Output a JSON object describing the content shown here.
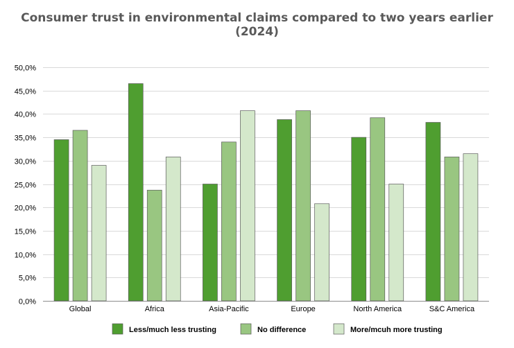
{
  "chart_data": {
    "type": "bar",
    "title": "Consumer trust in environmental claims compared to two years earlier (2024)",
    "xlabel": "",
    "ylabel": "",
    "categories": [
      "Global",
      "Africa",
      "Asia-Pacific",
      "Europe",
      "North America",
      "S&C America"
    ],
    "series": [
      {
        "name": "Less/much less trusting",
        "color": "#4f9e30",
        "values": [
          34.5,
          46.5,
          25.0,
          38.8,
          35.0,
          38.2
        ]
      },
      {
        "name": "No difference",
        "color": "#99c681",
        "values": [
          36.5,
          23.7,
          34.0,
          40.7,
          39.2,
          30.8
        ]
      },
      {
        "name": "More/mcuh more trusting",
        "color": "#d4e8cb",
        "values": [
          29.0,
          30.8,
          40.7,
          20.8,
          25.0,
          31.5
        ]
      }
    ],
    "ylim": [
      0,
      50
    ],
    "yticks": [
      "0,0%",
      "5,0%",
      "10,0%",
      "15,0%",
      "20,0%",
      "25,0%",
      "30,0%",
      "35,0%",
      "40,0%",
      "45,0%",
      "50,0%"
    ],
    "grid": true,
    "legend_position": "bottom"
  }
}
